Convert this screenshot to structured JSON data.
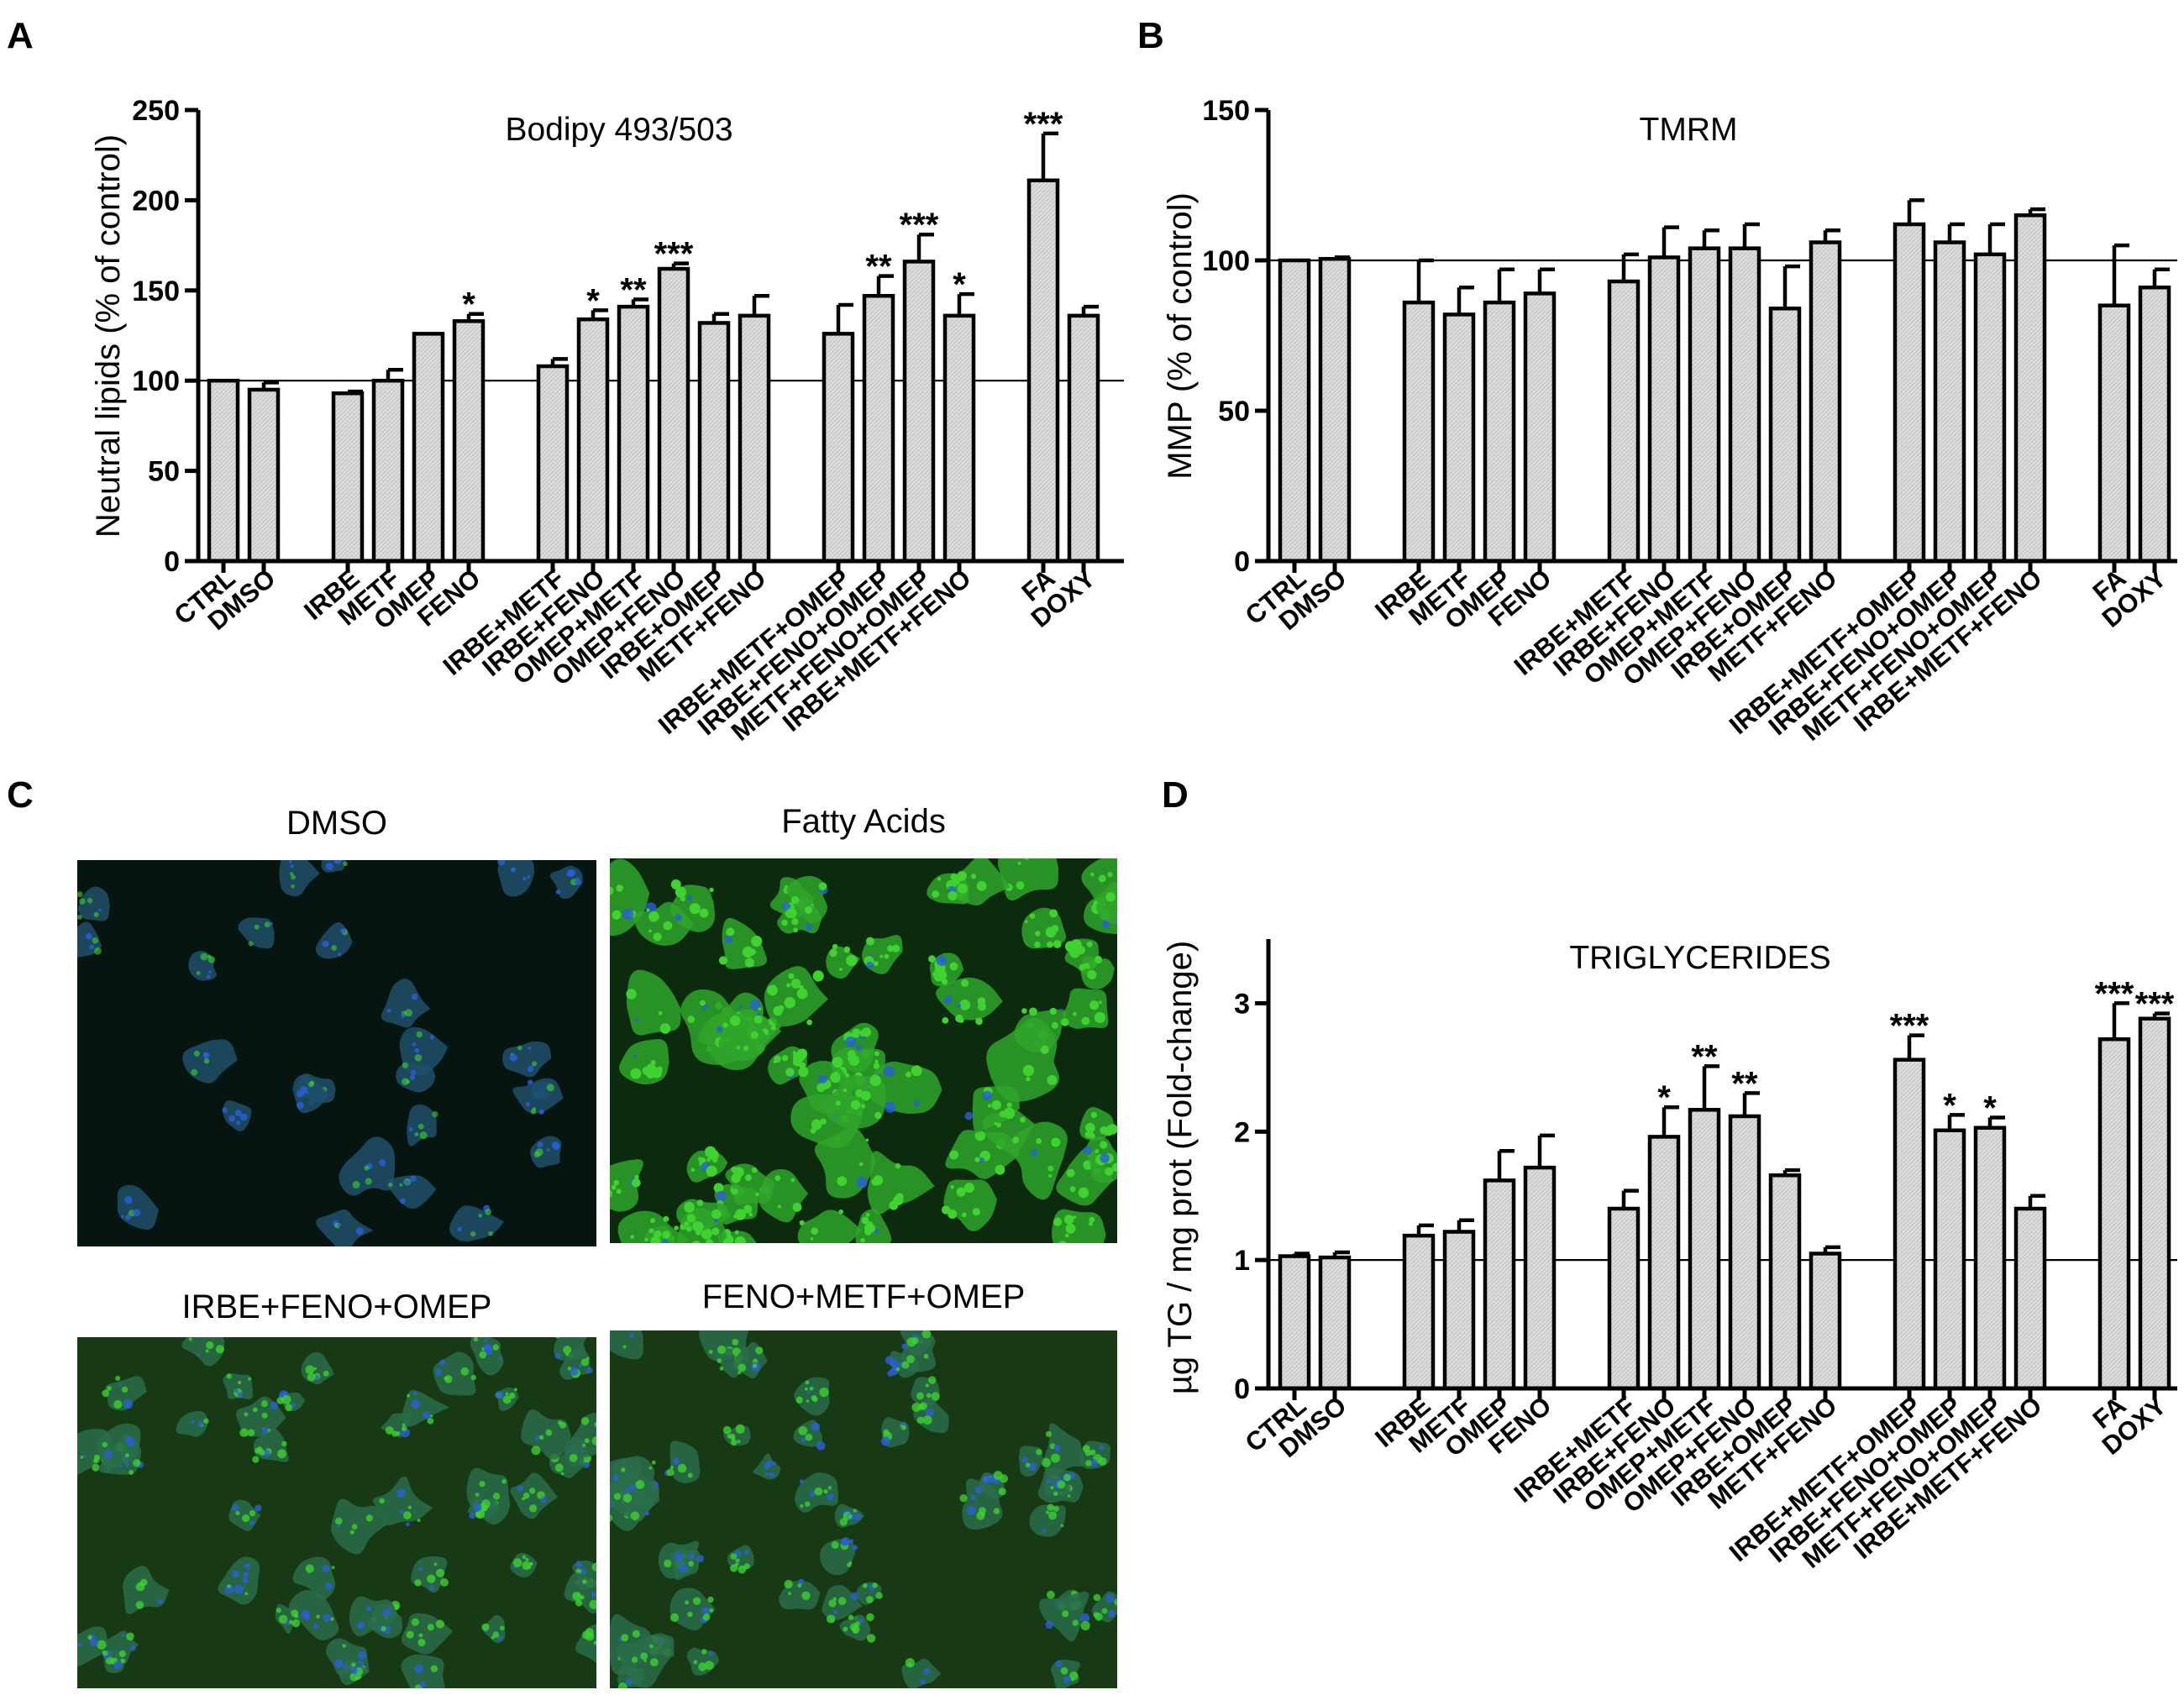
{
  "panels": {
    "A": "A",
    "B": "B",
    "C": "C",
    "D": "D"
  },
  "micrographs": [
    {
      "title": "DMSO",
      "intensity": 0.28
    },
    {
      "title": "Fatty Acids",
      "intensity": 1.0
    },
    {
      "title": "IRBE+FENO+OMEP",
      "intensity": 0.6
    },
    {
      "title": "FENO+METF+OMEP",
      "intensity": 0.6
    }
  ],
  "colors": {
    "bar_fill": "#dcdcdc",
    "micrograph_bg": "#0a1f0c",
    "stain_green": "#3fd230",
    "stain_blue": "#2b5fd8"
  },
  "chart_data": [
    {
      "type": "bar",
      "panel": "A",
      "title": "Bodipy 493/503",
      "ylabel": "Neutral lipids (% of control)",
      "ylim": [
        0,
        250
      ],
      "yticks": [
        0,
        50,
        100,
        150,
        200,
        250
      ],
      "reference_line": 100,
      "categories": [
        "CTRL",
        "DMSO",
        "IRBE",
        "METF",
        "OMEP",
        "FENO",
        "IRBE+METF",
        "IRBE+FENO",
        "OMEP+METF",
        "OMEP+FENO",
        "IRBE+OMEP",
        "METF+FENO",
        "IRBE+METF+OMEP",
        "IRBE+FENO+OMEP",
        "METF+FENO+OMEP",
        "IRBE+METF+FENO",
        "FA",
        "DOXY"
      ],
      "groups": [
        2,
        4,
        6,
        4,
        2
      ],
      "values": [
        100,
        95,
        93,
        100,
        126,
        133,
        108,
        134,
        141,
        162,
        132,
        136,
        126,
        147,
        166,
        136,
        211,
        136
      ],
      "errors": [
        0,
        4,
        1,
        6,
        0,
        4,
        4,
        5,
        4,
        3,
        5,
        11,
        16,
        11,
        15,
        12,
        26,
        5
      ],
      "significance": [
        "",
        "",
        "",
        "",
        "",
        "*",
        "",
        "*",
        "**",
        "***",
        "",
        "",
        "",
        "**",
        "***",
        "*",
        "***",
        ""
      ]
    },
    {
      "type": "bar",
      "panel": "B",
      "title": "TMRM",
      "ylabel": "MMP (% of control)",
      "ylim": [
        0,
        150
      ],
      "yticks": [
        0,
        50,
        100,
        150
      ],
      "reference_line": 100,
      "categories": [
        "CTRL",
        "DMSO",
        "IRBE",
        "METF",
        "OMEP",
        "FENO",
        "IRBE+METF",
        "IRBE+FENO",
        "OMEP+METF",
        "OMEP+FENO",
        "IRBE+OMEP",
        "METF+FENO",
        "IRBE+METF+OMEP",
        "IRBE+FENO+OMEP",
        "METF+FENO+OMEP",
        "IRBE+METF+FENO",
        "FA",
        "DOXY"
      ],
      "groups": [
        2,
        4,
        6,
        4,
        2
      ],
      "values": [
        100,
        100.5,
        86,
        82,
        86,
        89,
        93,
        101,
        104,
        104,
        84,
        106,
        112,
        106,
        102,
        115,
        85,
        91
      ],
      "errors": [
        0,
        0.5,
        14,
        9,
        11,
        8,
        9,
        10,
        6,
        8,
        14,
        4,
        8,
        6,
        10,
        2,
        20,
        6
      ],
      "significance": [
        "",
        "",
        "",
        "",
        "",
        "",
        "",
        "",
        "",
        "",
        "",
        "",
        "",
        "",
        "",
        "",
        "",
        ""
      ]
    },
    {
      "type": "bar",
      "panel": "D",
      "title": "TRIGLYCERIDES",
      "ylabel": "µg TG / mg prot (Fold-change)",
      "ylim": [
        0,
        3.5
      ],
      "yticks": [
        0,
        1,
        2,
        3
      ],
      "reference_line": 1,
      "categories": [
        "CTRL",
        "DMSO",
        "IRBE",
        "METF",
        "OMEP",
        "FENO",
        "IRBE+METF",
        "IRBE+FENO",
        "OMEP+METF",
        "OMEP+FENO",
        "IRBE+OMEP",
        "METF+FENO",
        "IRBE+METF+OMEP",
        "IRBE+FENO+OMEP",
        "METF+FENO+OMEP",
        "IRBE+METF+FENO",
        "FA",
        "DOXY"
      ],
      "groups": [
        2,
        4,
        6,
        4,
        2
      ],
      "values": [
        1.03,
        1.02,
        1.19,
        1.22,
        1.62,
        1.72,
        1.4,
        1.96,
        2.17,
        2.12,
        1.66,
        1.05,
        2.56,
        2.01,
        2.03,
        1.4,
        2.72,
        2.88
      ],
      "errors": [
        0.02,
        0.04,
        0.08,
        0.09,
        0.23,
        0.25,
        0.14,
        0.23,
        0.34,
        0.18,
        0.04,
        0.05,
        0.19,
        0.12,
        0.08,
        0.1,
        0.28,
        0.04
      ],
      "significance": [
        "",
        "",
        "",
        "",
        "",
        "",
        "",
        "*",
        "**",
        "**",
        "",
        "",
        "***",
        "*",
        "*",
        "",
        "***",
        "***"
      ]
    }
  ]
}
